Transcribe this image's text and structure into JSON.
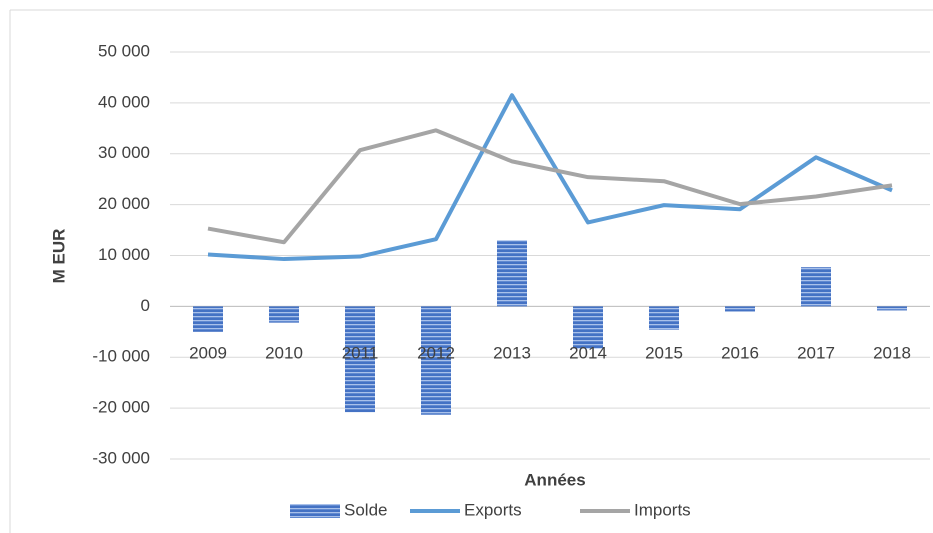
{
  "chart_data": {
    "type": "bar",
    "x_label": "Années",
    "y_label": "M EUR",
    "categories": [
      "2009",
      "2010",
      "2011",
      "2012",
      "2013",
      "2014",
      "2015",
      "2016",
      "2017",
      "2018"
    ],
    "series": [
      {
        "name": "Solde",
        "type": "bar",
        "color": "#4472c4",
        "values": [
          -5000,
          -3200,
          -20800,
          -21300,
          13000,
          -8300,
          -4600,
          -1000,
          7700,
          -800
        ]
      },
      {
        "name": "Exports",
        "type": "line",
        "color": "#5b9bd5",
        "values": [
          10200,
          9300,
          9800,
          13200,
          41500,
          16500,
          19900,
          19100,
          29300,
          22800
        ]
      },
      {
        "name": "Imports",
        "type": "line",
        "color": "#a5a5a5",
        "values": [
          15300,
          12600,
          30700,
          34600,
          28500,
          25400,
          24600,
          20100,
          21600,
          23800
        ]
      }
    ],
    "ylim": [
      -30000,
      50000
    ],
    "yticks": [
      {
        "value": -30000,
        "label": "-30 000"
      },
      {
        "value": -20000,
        "label": "-20 000"
      },
      {
        "value": -10000,
        "label": "-10 000"
      },
      0,
      {
        "value": 10000,
        "label": "10 000"
      },
      {
        "value": 20000,
        "label": "20 000"
      },
      {
        "value": 30000,
        "label": "30 000"
      },
      {
        "value": 40000,
        "label": "40 000"
      },
      {
        "value": 50000,
        "label": "50 000"
      }
    ],
    "grid": true,
    "legend": "bottom"
  }
}
